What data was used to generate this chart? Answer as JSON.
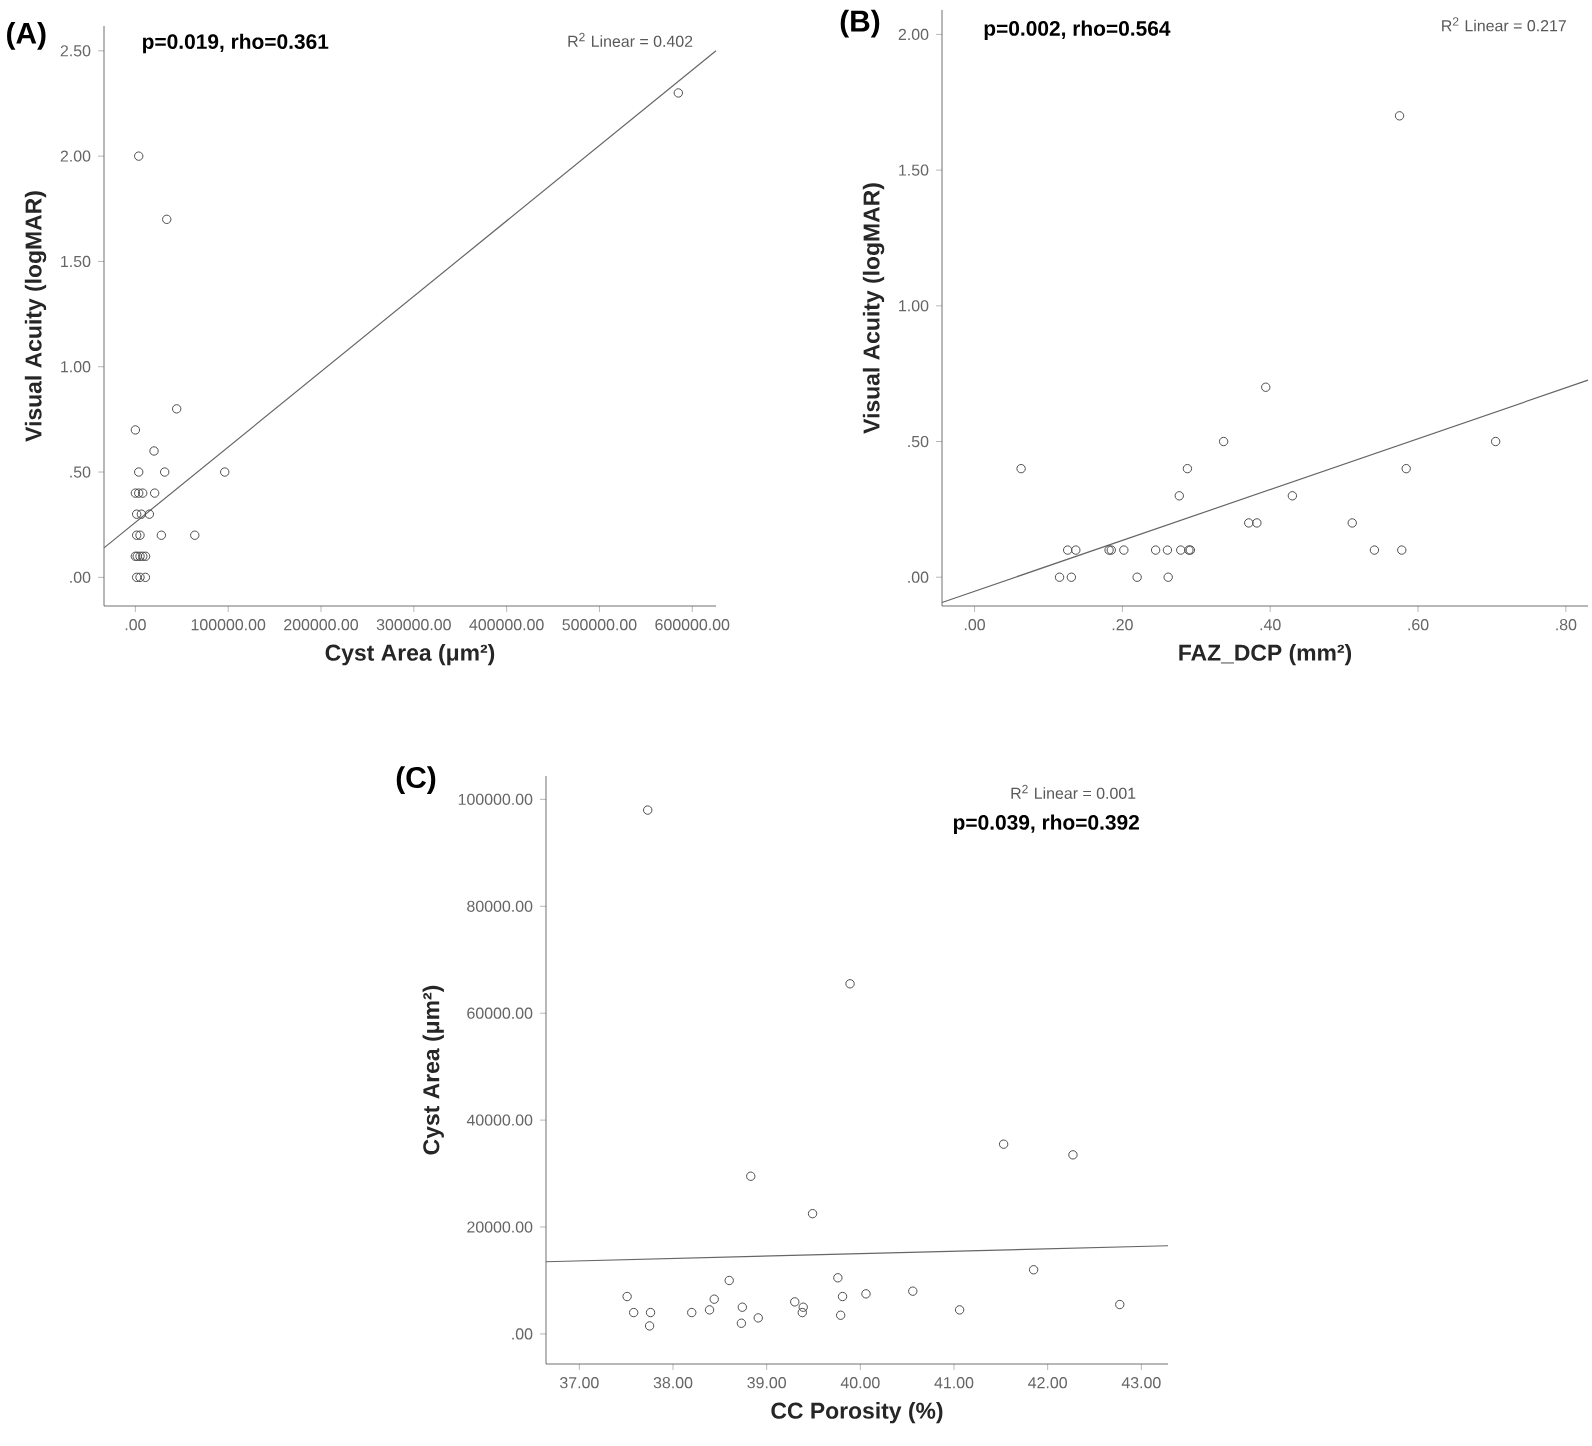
{
  "chart_data": [
    {
      "type": "scatter",
      "title": "(A)",
      "xlabel": "Cyst Area (μm²)",
      "ylabel": "Visual Acuity (logMAR)",
      "marker": "circle",
      "annotations": [
        "p=0.019, rho=0.361",
        "R$^{2}$ Linear = 0.402"
      ],
      "xlim": [
        -33800,
        625600
      ],
      "ylim": [
        -0.136,
        2.618
      ],
      "xticks": [
        {
          "value": 0,
          "label": ".00"
        },
        {
          "value": 100000,
          "label": "100000.00"
        },
        {
          "value": 200000,
          "label": "200000.00"
        },
        {
          "value": 300000,
          "label": "300000.00"
        },
        {
          "value": 400000,
          "label": "400000.00"
        },
        {
          "value": 500000,
          "label": "500000.00"
        },
        {
          "value": 600000,
          "label": "600000.00"
        }
      ],
      "yticks": [
        {
          "value": 0,
          "label": ".00"
        },
        {
          "value": 0.5,
          "label": ".50"
        },
        {
          "value": 1,
          "label": "1.00"
        },
        {
          "value": 1.5,
          "label": "1.50"
        },
        {
          "value": 2,
          "label": "2.00"
        },
        {
          "value": 2.5,
          "label": "2.50"
        }
      ],
      "series": [
        {
          "color": "#4d4d4d",
          "x": [
            3600,
            33800,
            585000,
            44500,
            0,
            20100,
            3600,
            31600,
            96300,
            0,
            3600,
            7900,
            20800,
            1400,
            6500,
            15100,
            1400,
            5000,
            28000,
            64000,
            0,
            2000,
            5000,
            8000,
            11000,
            1400,
            5000,
            10800
          ],
          "values": [
            2.0,
            1.7,
            2.3,
            0.8,
            0.7,
            0.6,
            0.5,
            0.5,
            0.5,
            0.4,
            0.4,
            0.4,
            0.4,
            0.3,
            0.3,
            0.3,
            0.2,
            0.2,
            0.2,
            0.2,
            0.1,
            0.1,
            0.1,
            0.1,
            0.1,
            0.0,
            0.0,
            0.0
          ]
        },
        {
          "type": "line",
          "color": "#666666",
          "marker": "none",
          "x": [
            -33800,
            625600
          ],
          "values": [
            0.14,
            2.5
          ]
        }
      ]
    },
    {
      "type": "scatter",
      "title": "(B)",
      "xlabel": "FAZ_DCP (mm²)",
      "ylabel": "Visual Acuity (logMAR)",
      "marker": "circle",
      "annotations": [
        "p=0.002, rho=0.564",
        "R$^{2}$ Linear = 0.217"
      ],
      "xlim": [
        -0.044,
        0.83
      ],
      "ylim": [
        -0.106,
        2.09
      ],
      "xticks": [
        {
          "value": 0,
          "label": ".00"
        },
        {
          "value": 0.2,
          "label": ".20"
        },
        {
          "value": 0.4,
          "label": ".40"
        },
        {
          "value": 0.6,
          "label": ".60"
        },
        {
          "value": 0.8,
          "label": ".80"
        }
      ],
      "yticks": [
        {
          "value": 0,
          "label": ".00"
        },
        {
          "value": 0.5,
          "label": ".50"
        },
        {
          "value": 1,
          "label": "1.00"
        },
        {
          "value": 1.5,
          "label": "1.50"
        },
        {
          "value": 2,
          "label": "2.00"
        }
      ],
      "series": [
        {
          "color": "#4d4d4d",
          "x": [
            0.575,
            0.394,
            0.337,
            0.705,
            0.063,
            0.288,
            0.584,
            0.277,
            0.43,
            0.371,
            0.382,
            0.511,
            0.126,
            0.137,
            0.182,
            0.185,
            0.202,
            0.245,
            0.261,
            0.279,
            0.29,
            0.292,
            0.541,
            0.578,
            0.115,
            0.131,
            0.22,
            0.262
          ],
          "values": [
            1.7,
            0.7,
            0.5,
            0.5,
            0.4,
            0.4,
            0.4,
            0.3,
            0.3,
            0.2,
            0.2,
            0.2,
            0.1,
            0.1,
            0.1,
            0.1,
            0.1,
            0.1,
            0.1,
            0.1,
            0.1,
            0.1,
            0.1,
            0.1,
            0.0,
            0.0,
            0.0,
            0.0
          ]
        },
        {
          "type": "line",
          "color": "#666666",
          "marker": "none",
          "x": [
            -0.044,
            0.83
          ],
          "values": [
            -0.093,
            0.726
          ]
        }
      ]
    },
    {
      "type": "scatter",
      "title": "(C)",
      "xlabel": "CC Porosity (%)",
      "ylabel": "Cyst Area (μm²)",
      "marker": "circle",
      "annotations": [
        "R$^{2}$ Linear = 0.001",
        "p=0.039, rho=0.392"
      ],
      "xlim": [
        36.644,
        43.285
      ],
      "ylim": [
        -5625,
        104375
      ],
      "xticks": [
        {
          "value": 37,
          "label": "37.00"
        },
        {
          "value": 38,
          "label": "38.00"
        },
        {
          "value": 39,
          "label": "39.00"
        },
        {
          "value": 40,
          "label": "40.00"
        },
        {
          "value": 41,
          "label": "41.00"
        },
        {
          "value": 42,
          "label": "42.00"
        },
        {
          "value": 43,
          "label": "43.00"
        }
      ],
      "yticks": [
        {
          "value": 0,
          "label": ".00"
        },
        {
          "value": 20000,
          "label": "20000.00"
        },
        {
          "value": 40000,
          "label": "40000.00"
        },
        {
          "value": 60000,
          "label": "60000.00"
        },
        {
          "value": 80000,
          "label": "80000.00"
        },
        {
          "value": 100000,
          "label": "100000.00"
        }
      ],
      "series": [
        {
          "color": "#4d4d4d",
          "x": [
            37.73,
            39.89,
            38.83,
            39.49,
            41.53,
            42.27,
            41.85,
            42.77,
            37.51,
            37.58,
            37.76,
            37.75,
            38.2,
            38.39,
            38.44,
            38.6,
            38.74,
            38.73,
            38.91,
            39.3,
            39.39,
            39.38,
            39.76,
            39.81,
            39.79,
            40.06,
            40.56,
            41.06
          ],
          "values": [
            98000,
            65500,
            29500,
            22500,
            35500,
            33500,
            12000,
            5500,
            7000,
            4000,
            4000,
            1500,
            4000,
            4500,
            6500,
            10000,
            5000,
            2000,
            3000,
            6000,
            5000,
            4000,
            10500,
            7000,
            3500,
            7500,
            8000,
            4500
          ]
        },
        {
          "type": "line",
          "color": "#666666",
          "marker": "none",
          "x": [
            36.644,
            43.285
          ],
          "values": [
            13500,
            16500
          ]
        }
      ]
    }
  ]
}
